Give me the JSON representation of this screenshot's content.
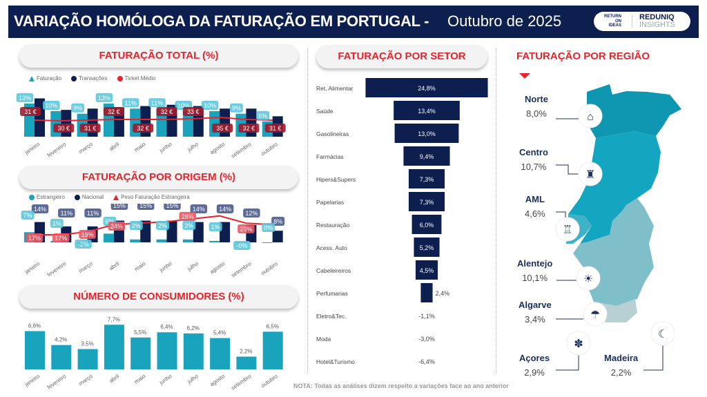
{
  "header": {
    "title": "VARIAÇÃO HOMÓLOGA DA FATURAÇÃO EM PORTUGAL -",
    "period": "Outubro de 2025",
    "logo_left": "RETURN ON IDEAS",
    "logo_right_top": "REDUNIQ",
    "logo_right_bottom": "INSIGHTS"
  },
  "colors": {
    "navy": "#0d1f4f",
    "teal": "#1aa3bd",
    "red": "#e8232a",
    "light_teal": "#5bc8dc"
  },
  "chart_data": [
    {
      "type": "bar",
      "title": "FATURAÇÃO TOTAL (%)",
      "categories": [
        "janeiro",
        "fevereiro",
        "março",
        "abril",
        "maio",
        "junho",
        "julho",
        "agosto",
        "setembro",
        "outubro"
      ],
      "legend": [
        "Faturação",
        "Transações",
        "Ticket Médio"
      ],
      "series": [
        {
          "name": "Faturação",
          "values": [
            13,
            10,
            9,
            13,
            11,
            11,
            10,
            10,
            9,
            6
          ],
          "labels": [
            "13%",
            "10%",
            "9%",
            "13%",
            "11%",
            "11%",
            "10%",
            "10%",
            "9%",
            "6%"
          ]
        },
        {
          "name": "Transações",
          "values": [
            15,
            10.5,
            11,
            11.5,
            12,
            12.5,
            12,
            11,
            11,
            8
          ]
        },
        {
          "name": "Ticket Médio",
          "values": [
            31,
            30,
            31,
            32,
            32,
            32,
            33,
            35,
            32,
            31
          ],
          "labels": [
            "31 €",
            "30 €",
            "31 €",
            "32 €",
            "32 €",
            "32 €",
            "33 €",
            "35 €",
            "32 €",
            "31 €"
          ]
        }
      ]
    },
    {
      "type": "bar",
      "title": "FATURAÇÃO POR ORIGEM (%)",
      "categories": [
        "janeiro",
        "fevereiro",
        "março",
        "abril",
        "maio",
        "junho",
        "julho",
        "agosto",
        "setembro",
        "outubro"
      ],
      "legend": [
        "Estrangeiro",
        "Nacional",
        "Peso Faturação Estrangeira"
      ],
      "series": [
        {
          "name": "Estrangeiro",
          "values": [
            7,
            1,
            -2,
            6,
            2,
            2,
            2,
            1,
            -0.1,
            0
          ],
          "labels": [
            "7%",
            "1%",
            "-2%",
            "6%",
            "2%",
            "2%",
            "2%",
            "1%",
            "-0%",
            "0%"
          ]
        },
        {
          "name": "Nacional",
          "values": [
            14,
            11,
            11,
            15,
            15,
            15,
            14,
            14,
            12,
            8
          ],
          "labels": [
            "14%",
            "11%",
            "11%",
            "15%",
            "15%",
            "15%",
            "14%",
            "14%",
            "12%",
            "8%"
          ]
        },
        {
          "name": "Peso Faturação Estrangeira",
          "values": [
            17,
            17,
            19,
            24,
            25,
            26,
            28,
            30,
            25,
            24
          ],
          "labels": [
            "17%",
            "17%",
            "19%",
            "24%",
            "",
            "",
            "28%",
            "",
            "25%",
            ""
          ]
        }
      ]
    },
    {
      "type": "bar",
      "title": "NÚMERO DE CONSUMIDORES (%)",
      "categories": [
        "janeiro",
        "fevereiro",
        "março",
        "abril",
        "maio",
        "junho",
        "julho",
        "agosto",
        "setembro",
        "outubro"
      ],
      "values": [
        6.6,
        4.2,
        3.5,
        7.7,
        5.5,
        6.4,
        6.2,
        5.4,
        2.2,
        6.5
      ],
      "labels": [
        "6,6%",
        "4,2%",
        "3,5%",
        "7,7%",
        "5,5%",
        "6,4%",
        "6,2%",
        "5,4%",
        "2,2%",
        "6,5%"
      ]
    },
    {
      "type": "bar",
      "title": "FATURAÇÃO POR SETOR",
      "categories": [
        "Ret. Alimentar",
        "Saúde",
        "Gasolineiras",
        "Farmácias",
        "Hipers&Supers",
        "Papelarias",
        "Restauração",
        "Acess. Auto",
        "Cabeleireiros",
        "Perfumarias",
        "Eletro&Tec.",
        "Moda",
        "Hotel&Turismo"
      ],
      "values": [
        24.8,
        13.4,
        13.0,
        9.4,
        7.3,
        7.3,
        6.0,
        5.2,
        4.5,
        2.4,
        -1.1,
        -3.0,
        -6.4
      ],
      "labels": [
        "24,8%",
        "13,4%",
        "13,0%",
        "9,4%",
        "7,3%",
        "7,3%",
        "6,0%",
        "5,2%",
        "4,5%",
        "2,4%",
        "-1,1%",
        "-3,0%",
        "-6,4%"
      ]
    }
  ],
  "regions": {
    "title": "FATURAÇÃO POR REGIÃO",
    "items": [
      {
        "name": "Norte",
        "value": "8,0%",
        "icon": "bridge-icon"
      },
      {
        "name": "Centro",
        "value": "10,7%",
        "icon": "university-icon"
      },
      {
        "name": "AML",
        "value": "4,6%",
        "icon": "tower-icon"
      },
      {
        "name": "Alentejo",
        "value": "10,1%",
        "icon": "fields-icon"
      },
      {
        "name": "Algarve",
        "value": "3,4%",
        "icon": "beach-icon"
      },
      {
        "name": "Açores",
        "value": "2,9%",
        "icon": "pineapple-icon"
      },
      {
        "name": "Madeira",
        "value": "2,2%",
        "icon": "banana-icon"
      }
    ]
  },
  "note": "NOTA: Todas as análises dizem respeito a variações face ao ano anterior"
}
